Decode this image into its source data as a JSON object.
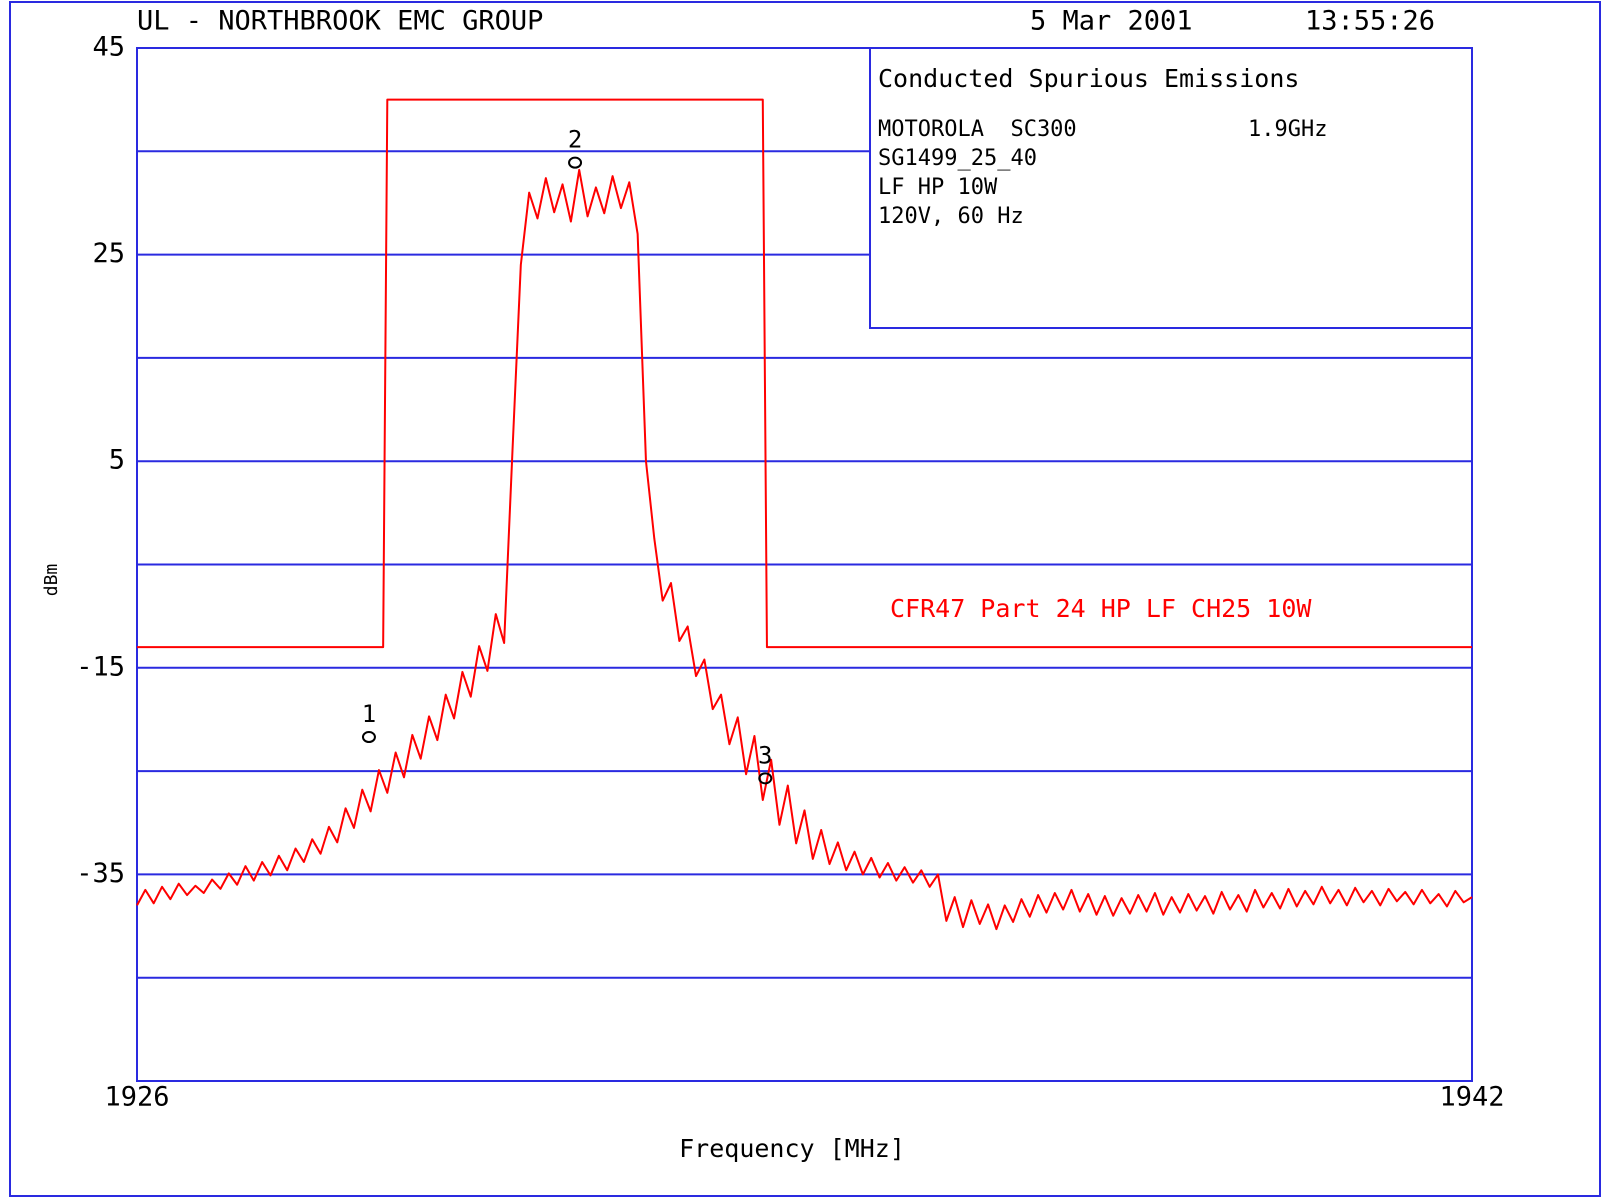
{
  "chart_data": {
    "type": "line",
    "header": {
      "left": "UL - NORTHBROOK EMC GROUP",
      "date": "5 Mar 2001",
      "time": "13:55:26"
    },
    "info": {
      "title": "Conducted Spurious Emissions",
      "device": "MOTOROLA  SC300",
      "band": "1.9GHz",
      "lines": [
        "SG1499_25_40",
        "LF HP 10W",
        "120V, 60 Hz"
      ]
    },
    "xlabel": "Frequency [MHz]",
    "ylabel": "dBm",
    "xlim": [
      1926,
      1942
    ],
    "xticks": [
      1926,
      1942
    ],
    "ylim": [
      -55,
      45
    ],
    "yticks": [
      45,
      25,
      5,
      -15,
      -35
    ],
    "minor_yticks": [
      35,
      15,
      -5,
      -25,
      -45
    ],
    "grid": true,
    "grid_color": "#2a2ae0",
    "trace": {
      "color": "#ff0000",
      "x": [
        1926,
        1926.1,
        1926.2,
        1926.3,
        1926.4,
        1926.5,
        1926.6,
        1926.7,
        1926.8,
        1926.9,
        1927,
        1927.1,
        1927.2,
        1927.3,
        1927.4,
        1927.5,
        1927.6,
        1927.7,
        1927.8,
        1927.9,
        1928,
        1928.1,
        1928.2,
        1928.3,
        1928.4,
        1928.5,
        1928.6,
        1928.7,
        1928.8,
        1928.9,
        1929,
        1929.1,
        1929.2,
        1929.3,
        1929.4,
        1929.5,
        1929.6,
        1929.7,
        1929.8,
        1929.9,
        1930,
        1930.1,
        1930.2,
        1930.3,
        1930.4,
        1930.5,
        1930.6,
        1930.7,
        1930.8,
        1930.9,
        1931,
        1931.1,
        1931.2,
        1931.3,
        1931.4,
        1931.5,
        1931.6,
        1931.7,
        1931.8,
        1931.9,
        1932,
        1932.1,
        1932.2,
        1932.3,
        1932.4,
        1932.5,
        1932.6,
        1932.7,
        1932.8,
        1932.9,
        1933,
        1933.1,
        1933.2,
        1933.3,
        1933.4,
        1933.5,
        1933.6,
        1933.7,
        1933.8,
        1933.9,
        1934,
        1934.1,
        1934.2,
        1934.3,
        1934.4,
        1934.5,
        1934.6,
        1934.7,
        1934.8,
        1934.9,
        1935,
        1935.1,
        1935.2,
        1935.3,
        1935.4,
        1935.5,
        1935.6,
        1935.7,
        1935.8,
        1935.9,
        1936,
        1936.1,
        1936.2,
        1936.3,
        1936.4,
        1936.5,
        1936.6,
        1936.7,
        1936.8,
        1936.9,
        1937,
        1937.1,
        1937.2,
        1937.3,
        1937.4,
        1937.5,
        1937.6,
        1937.7,
        1937.8,
        1937.9,
        1938,
        1938.1,
        1938.2,
        1938.3,
        1938.4,
        1938.5,
        1938.6,
        1938.7,
        1938.8,
        1938.9,
        1939,
        1939.1,
        1939.2,
        1939.3,
        1939.4,
        1939.5,
        1939.6,
        1939.7,
        1939.8,
        1939.9,
        1940,
        1940.1,
        1940.2,
        1940.3,
        1940.4,
        1940.5,
        1940.6,
        1940.7,
        1940.8,
        1940.9,
        1941,
        1941.1,
        1941.2,
        1941.3,
        1941.4,
        1941.5,
        1941.6,
        1941.7,
        1941.8,
        1941.9,
        1942
      ],
      "values": [
        -38,
        -36.5,
        -37.8,
        -36.2,
        -37.4,
        -35.9,
        -37.0,
        -36.1,
        -36.8,
        -35.5,
        -36.4,
        -34.9,
        -36.0,
        -34.2,
        -35.6,
        -33.8,
        -35.1,
        -33.2,
        -34.6,
        -32.5,
        -33.8,
        -31.6,
        -33.0,
        -30.4,
        -31.9,
        -28.6,
        -30.5,
        -26.8,
        -28.9,
        -24.9,
        -27.1,
        -23.2,
        -25.6,
        -21.5,
        -23.8,
        -19.7,
        -22.0,
        -17.6,
        -19.9,
        -15.4,
        -17.8,
        -12.9,
        -15.3,
        -9.8,
        -12.6,
        6,
        24,
        31,
        28.5,
        32.4,
        29.1,
        31.8,
        28.2,
        33.2,
        28.7,
        31.5,
        29.0,
        32.6,
        29.5,
        32.0,
        27,
        5,
        -2.5,
        -8.5,
        -6.8,
        -12.4,
        -11.0,
        -15.8,
        -14.2,
        -19.0,
        -17.6,
        -22.4,
        -19.8,
        -25.3,
        -21.6,
        -27.8,
        -23.9,
        -30.2,
        -26.4,
        -32.0,
        -28.8,
        -33.5,
        -30.7,
        -34.0,
        -31.9,
        -34.6,
        -32.8,
        -35.0,
        -33.4,
        -35.3,
        -33.9,
        -35.6,
        -34.3,
        -35.8,
        -34.6,
        -36.2,
        -35.0,
        -39.5,
        -37.2,
        -40.1,
        -37.5,
        -39.8,
        -37.9,
        -40.3,
        -38.0,
        -39.6,
        -37.4,
        -39.1,
        -37.0,
        -38.7,
        -36.8,
        -38.4,
        -36.5,
        -38.6,
        -36.9,
        -38.9,
        -37.1,
        -39.0,
        -37.3,
        -38.8,
        -37.0,
        -38.6,
        -36.8,
        -38.9,
        -37.2,
        -38.7,
        -36.9,
        -38.5,
        -37.1,
        -38.8,
        -36.7,
        -38.4,
        -37.0,
        -38.6,
        -36.5,
        -38.2,
        -36.8,
        -38.3,
        -36.4,
        -38.1,
        -36.6,
        -37.9,
        -36.2,
        -37.8,
        -36.5,
        -38.0,
        -36.3,
        -37.7,
        -36.6,
        -38.0,
        -36.4,
        -37.6,
        -36.7,
        -37.9,
        -36.5,
        -37.8,
        -36.9,
        -38.1,
        -36.6,
        -37.7,
        -37.2
      ]
    },
    "limit": {
      "name": "CFR47 Part 24 HP LF CH25 10W",
      "color": "#ff0000",
      "x": [
        1926,
        1928.95,
        1929.0,
        1933.5,
        1933.55,
        1942
      ],
      "values": [
        -13,
        -13,
        40,
        40,
        -13,
        -13
      ]
    },
    "markers": [
      {
        "label": "1",
        "x": 1928.78,
        "y": -21.7
      },
      {
        "label": "2",
        "x": 1931.25,
        "y": 33.9
      },
      {
        "label": "3",
        "x": 1933.53,
        "y": -25.7
      }
    ]
  }
}
